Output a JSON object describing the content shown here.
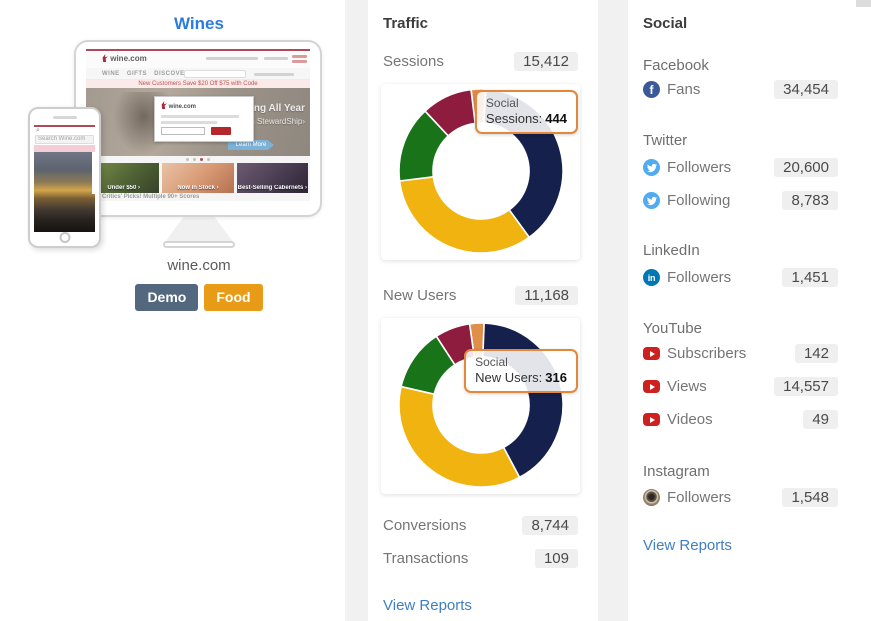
{
  "left_panel": {
    "title": "Wines",
    "site_label": "wine.com",
    "tags": [
      {
        "label": "Demo",
        "color": "#53687e"
      },
      {
        "label": "Food",
        "color": "#e89b17"
      }
    ],
    "monitor_mock": {
      "logo_text": "wine.com",
      "nav_text": "WINE GIFTS DISCOVER",
      "promo_text": "New Customers Save $20 Off $75 with Code",
      "hero_line1": "pping All Year",
      "hero_line2": "ith StewardShip›",
      "hero_cta": "Learn More",
      "tile_captions": [
        "Under $50 ›",
        "Now In Stock ›",
        "Best-Selling Cabernets ›"
      ],
      "tiles_footnote": "Critics' Picks! Multiple 90+ Scores"
    },
    "phone_mock": {
      "search_placeholder": "Search Wine.com"
    }
  },
  "traffic": {
    "header": "Traffic",
    "metrics": [
      {
        "label": "Sessions",
        "value": "15,412"
      },
      {
        "label": "New Users",
        "value": "11,168"
      },
      {
        "label": "Conversions",
        "value": "8,744"
      },
      {
        "label": "Transactions",
        "value": "109"
      }
    ],
    "view_reports_label": "View Reports"
  },
  "social": {
    "header": "Social",
    "networks": [
      {
        "name": "Facebook",
        "icon": "facebook-icon",
        "rows": [
          {
            "label": "Fans",
            "value": "34,454"
          }
        ]
      },
      {
        "name": "Twitter",
        "icon": "twitter-icon",
        "rows": [
          {
            "label": "Followers",
            "value": "20,600"
          },
          {
            "label": "Following",
            "value": "8,783"
          }
        ]
      },
      {
        "name": "LinkedIn",
        "icon": "linkedin-icon",
        "rows": [
          {
            "label": "Followers",
            "value": "1,451"
          }
        ]
      },
      {
        "name": "YouTube",
        "icon": "youtube-icon",
        "rows": [
          {
            "label": "Subscribers",
            "value": "142"
          },
          {
            "label": "Views",
            "value": "14,557"
          },
          {
            "label": "Videos",
            "value": "49"
          }
        ]
      },
      {
        "name": "Instagram",
        "icon": "instagram-icon",
        "rows": [
          {
            "label": "Followers",
            "value": "1,548"
          }
        ]
      }
    ],
    "view_reports_label": "View Reports"
  },
  "chart_data": [
    {
      "type": "pie",
      "variant": "donut",
      "metric": "Sessions",
      "total": 15412,
      "start_angle_deg": -7,
      "legend_position": "none",
      "note": "Only the Social segment is labeled (tooltip); other segment values estimated from arc angles.",
      "segments": [
        {
          "label": "Social",
          "value": 444,
          "color": "#df8f49",
          "estimated": false
        },
        {
          "label": "",
          "value": 6020,
          "color": "#16204c",
          "estimated": true
        },
        {
          "label": "",
          "value": 5095,
          "color": "#f0b30f",
          "estimated": true
        },
        {
          "label": "",
          "value": 2312,
          "color": "#197419",
          "estimated": true
        },
        {
          "label": "",
          "value": 1541,
          "color": "#8e1c3e",
          "estimated": true
        }
      ],
      "tooltip": {
        "title": "Social",
        "metric_label": "Sessions:",
        "value": "444"
      }
    },
    {
      "type": "pie",
      "variant": "donut",
      "metric": "New Users",
      "total": 11168,
      "start_angle_deg": -8,
      "legend_position": "none",
      "note": "Only the Social segment is labeled (tooltip); other segment values estimated from arc angles.",
      "segments": [
        {
          "label": "Social",
          "value": 316,
          "color": "#df8f49",
          "estimated": false
        },
        {
          "label": "",
          "value": 4647,
          "color": "#16204c",
          "estimated": true
        },
        {
          "label": "",
          "value": 4064,
          "color": "#f0b30f",
          "estimated": true
        },
        {
          "label": "",
          "value": 1365,
          "color": "#197419",
          "estimated": true
        },
        {
          "label": "",
          "value": 776,
          "color": "#8e1c3e",
          "estimated": true
        }
      ],
      "tooltip": {
        "title": "Social",
        "metric_label": "New Users:",
        "value": "316"
      }
    }
  ]
}
